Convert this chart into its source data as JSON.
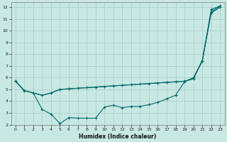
{
  "xlabel": "Humidex (Indice chaleur)",
  "xlim": [
    -0.5,
    23.5
  ],
  "ylim": [
    2,
    12.4
  ],
  "xticks": [
    0,
    1,
    2,
    3,
    4,
    5,
    6,
    7,
    8,
    9,
    10,
    11,
    12,
    13,
    14,
    15,
    16,
    17,
    18,
    19,
    20,
    21,
    22,
    23
  ],
  "yticks": [
    2,
    3,
    4,
    5,
    6,
    7,
    8,
    9,
    10,
    11,
    12
  ],
  "bg_color": "#c8e8e4",
  "line_color": "#006b6b",
  "grid_color": "#a8ccc8",
  "line1_x": [
    0,
    1,
    2,
    3,
    4,
    5,
    6,
    7,
    8,
    9,
    10,
    11,
    12,
    13,
    14,
    15,
    16,
    17,
    18,
    19,
    20,
    21,
    22,
    23
  ],
  "line1_y": [
    5.7,
    4.9,
    4.7,
    4.5,
    4.7,
    5.0,
    5.05,
    5.1,
    5.15,
    5.2,
    5.25,
    5.3,
    5.35,
    5.4,
    5.45,
    5.5,
    5.55,
    5.6,
    5.65,
    5.7,
    5.9,
    7.5,
    11.6,
    12.1
  ],
  "line2_x": [
    0,
    1,
    2,
    3,
    4,
    5,
    6,
    7,
    8,
    9,
    10,
    11,
    12,
    13,
    14,
    15,
    16,
    17,
    18,
    19,
    20,
    21,
    22,
    23
  ],
  "line2_y": [
    5.7,
    4.9,
    4.7,
    3.3,
    2.9,
    2.1,
    2.6,
    2.55,
    2.55,
    2.55,
    3.5,
    3.65,
    3.45,
    3.55,
    3.55,
    3.7,
    3.9,
    4.2,
    4.5,
    5.65,
    6.0,
    7.4,
    11.8,
    12.1
  ],
  "line3_x": [
    0,
    1,
    2,
    3,
    4,
    5,
    6,
    7,
    8,
    9,
    10,
    11,
    12,
    13,
    14,
    15,
    16,
    17,
    18,
    19,
    20,
    21,
    22,
    23
  ],
  "line3_y": [
    5.7,
    4.9,
    4.7,
    4.5,
    4.7,
    5.0,
    5.05,
    5.1,
    5.15,
    5.2,
    5.25,
    5.3,
    5.35,
    5.4,
    5.45,
    5.5,
    5.55,
    5.6,
    5.65,
    5.7,
    5.9,
    7.4,
    11.5,
    12.0
  ]
}
